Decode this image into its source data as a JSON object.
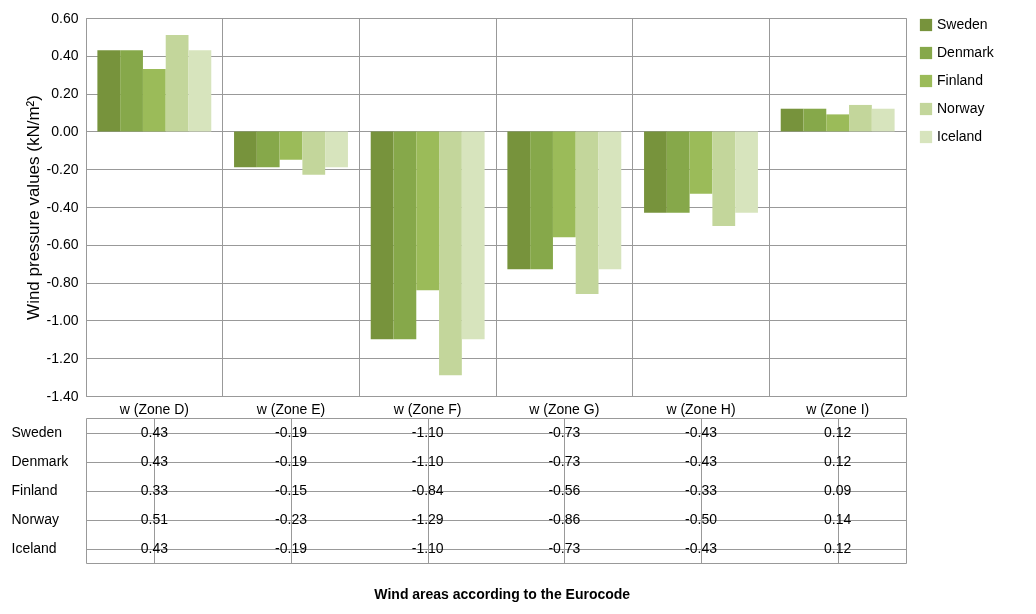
{
  "chart_data": {
    "type": "bar",
    "ylabel": "Wind pressure values  (kN/m²)",
    "annotations": [
      "Wind areas according to the Eurocode"
    ],
    "categories": [
      "w (Zone D)",
      "w (Zone E)",
      "w (Zone F)",
      "w (Zone G)",
      "w (Zone H)",
      "w (Zone I)"
    ],
    "series": [
      {
        "name": "Sweden",
        "color": "#77933c",
        "values": [
          0.43,
          -0.19,
          -1.1,
          -0.73,
          -0.43,
          0.12
        ],
        "value_labels": [
          "0.43",
          "-0.19",
          "-1.10",
          "-0.73",
          "-0.43",
          "0.12"
        ]
      },
      {
        "name": "Denmark",
        "color": "#86a84a",
        "values": [
          0.43,
          -0.19,
          -1.1,
          -0.73,
          -0.43,
          0.12
        ],
        "value_labels": [
          "0.43",
          "-0.19",
          "-1.10",
          "-0.73",
          "-0.43",
          "0.12"
        ]
      },
      {
        "name": "Finland",
        "color": "#9bbb59",
        "values": [
          0.33,
          -0.15,
          -0.84,
          -0.56,
          -0.33,
          0.09
        ],
        "value_labels": [
          "0.33",
          "-0.15",
          "-0.84",
          "-0.56",
          "-0.33",
          "0.09"
        ]
      },
      {
        "name": "Norway",
        "color": "#c3d69b",
        "values": [
          0.51,
          -0.23,
          -1.29,
          -0.86,
          -0.5,
          0.14
        ],
        "value_labels": [
          "0.51",
          "-0.23",
          "-1.29",
          "-0.86",
          "-0.50",
          "0.14"
        ]
      },
      {
        "name": "Iceland",
        "color": "#d7e4bd",
        "values": [
          0.43,
          -0.19,
          -1.1,
          -0.73,
          -0.43,
          0.12
        ],
        "value_labels": [
          "0.43",
          "-0.19",
          "-1.10",
          "-0.73",
          "-0.43",
          "0.12"
        ]
      }
    ],
    "ylim": [
      -1.4,
      0.6
    ],
    "yticks": [
      {
        "value": -1.4,
        "label": "-1.40"
      },
      {
        "value": -1.2,
        "label": "-1.20"
      },
      {
        "value": -1.0,
        "label": "-1.00"
      },
      {
        "value": -0.8,
        "label": "-0.80"
      },
      {
        "value": -0.6,
        "label": "-0.60"
      },
      {
        "value": -0.4,
        "label": "-0.40"
      },
      {
        "value": -0.2,
        "label": "-0.20"
      },
      {
        "value": 0,
        "label": "0.00"
      },
      {
        "value": 0.2,
        "label": "0.20"
      },
      {
        "value": 0.4,
        "label": "0.40"
      },
      {
        "value": 0.6,
        "label": "0.60"
      }
    ],
    "grid": true,
    "legend": "right"
  }
}
